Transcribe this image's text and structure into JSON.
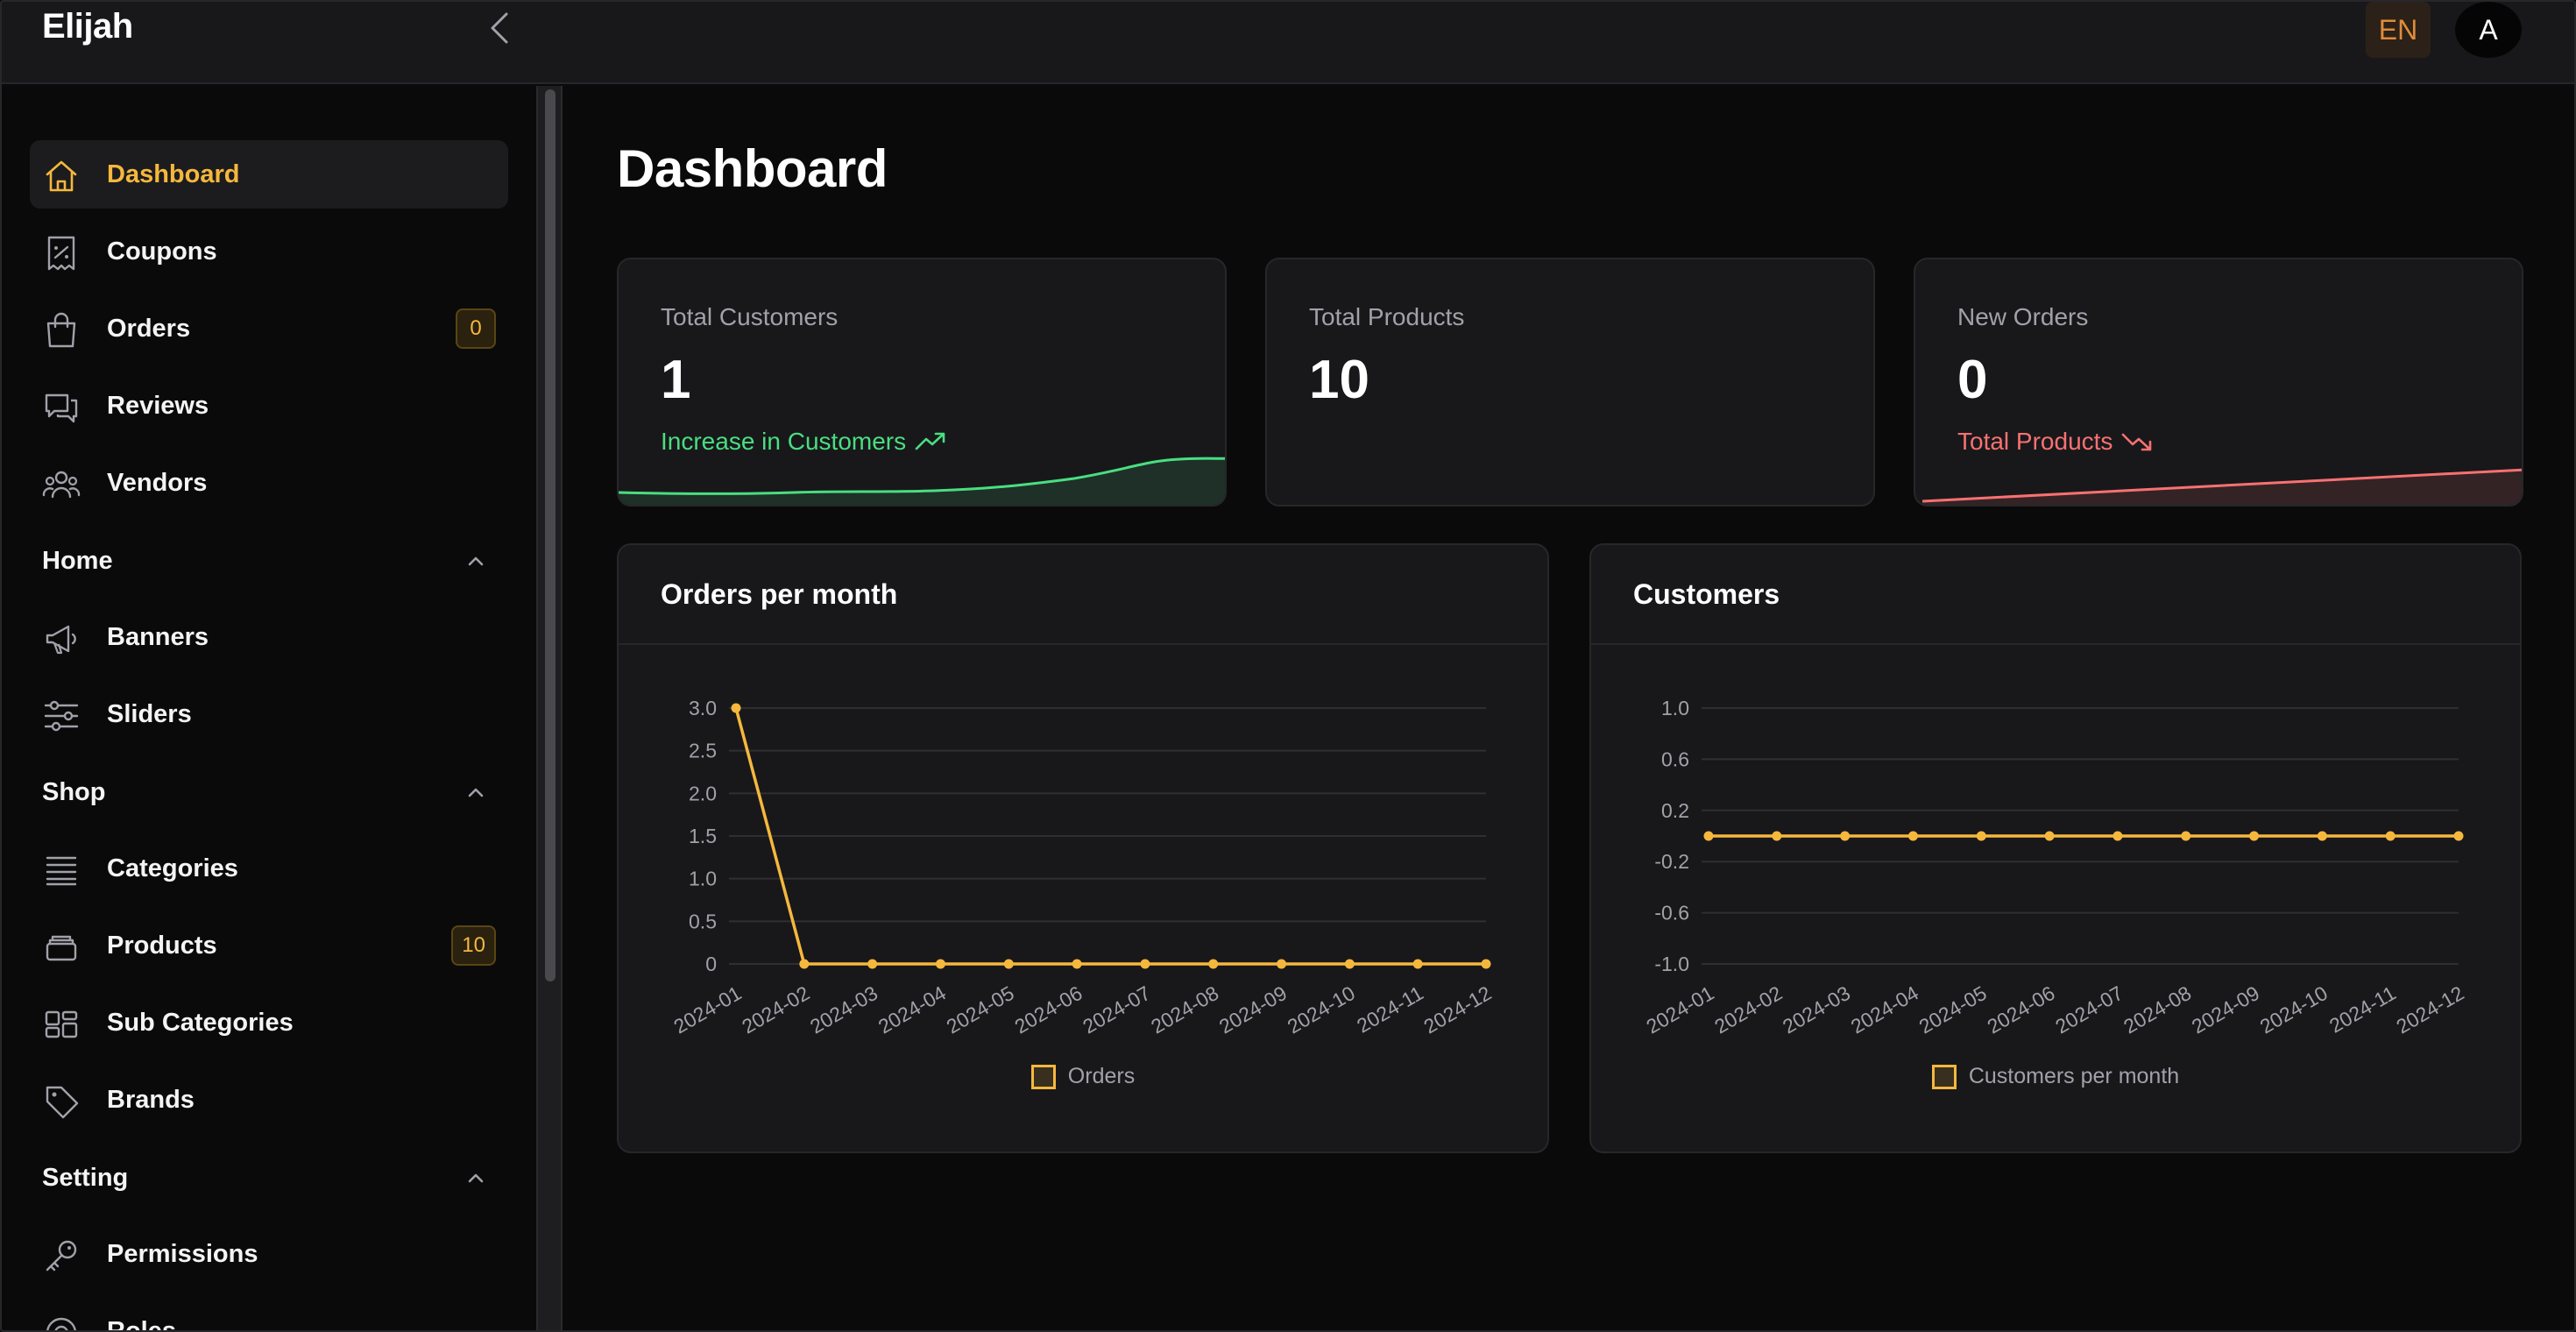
{
  "app": {
    "brand": "Elijah",
    "lang": "EN",
    "avatar_initial": "A"
  },
  "sidebar": {
    "items": [
      {
        "label": "Dashboard",
        "icon": "home-icon",
        "active": true
      },
      {
        "label": "Coupons",
        "icon": "coupon-icon"
      },
      {
        "label": "Orders",
        "icon": "shopping-bag-icon",
        "badge": "0"
      },
      {
        "label": "Reviews",
        "icon": "chat-bubbles-icon"
      },
      {
        "label": "Vendors",
        "icon": "users-icon"
      }
    ],
    "sections": [
      {
        "label": "Home",
        "items": [
          {
            "label": "Banners",
            "icon": "megaphone-icon"
          },
          {
            "label": "Sliders",
            "icon": "sliders-icon"
          }
        ]
      },
      {
        "label": "Shop",
        "items": [
          {
            "label": "Categories",
            "icon": "list-icon"
          },
          {
            "label": "Products",
            "icon": "box-stack-icon",
            "badge": "10"
          },
          {
            "label": "Sub Categories",
            "icon": "grid-icon"
          },
          {
            "label": "Brands",
            "icon": "tag-icon"
          }
        ]
      },
      {
        "label": "Setting",
        "items": [
          {
            "label": "Permissions",
            "icon": "key-icon"
          },
          {
            "label": "Roles",
            "icon": "roles-icon"
          }
        ]
      }
    ]
  },
  "main": {
    "title": "Dashboard",
    "stats": [
      {
        "label": "Total Customers",
        "value": "1",
        "trend": "Increase in Customers",
        "trend_color": "#4ade80",
        "trend_dir": "up"
      },
      {
        "label": "Total Products",
        "value": "10"
      },
      {
        "label": "New Orders",
        "value": "0",
        "trend": "Total Products",
        "trend_color": "#f87171",
        "trend_dir": "down"
      }
    ]
  },
  "charts": {
    "orders": {
      "title": "Orders per month"
    },
    "customers": {
      "title": "Customers"
    }
  },
  "chart_data": [
    {
      "type": "line",
      "title": "Orders per month",
      "x": [
        "2024-01",
        "2024-02",
        "2024-03",
        "2024-04",
        "2024-05",
        "2024-06",
        "2024-07",
        "2024-08",
        "2024-09",
        "2024-10",
        "2024-11",
        "2024-12"
      ],
      "series": [
        {
          "name": "Orders",
          "values": [
            3,
            0,
            0,
            0,
            0,
            0,
            0,
            0,
            0,
            0,
            0,
            0
          ],
          "color": "#f5b83d"
        }
      ],
      "ylim": [
        0,
        3
      ],
      "yticks": [
        "3.0",
        "2.5",
        "2.0",
        "1.5",
        "1.0",
        "0.5",
        "0"
      ],
      "ytick_values": [
        3,
        2.5,
        2,
        1.5,
        1,
        0.5,
        0
      ],
      "grid": true,
      "legend": "bottom"
    },
    {
      "type": "line",
      "title": "Customers",
      "x": [
        "2024-01",
        "2024-02",
        "2024-03",
        "2024-04",
        "2024-05",
        "2024-06",
        "2024-07",
        "2024-08",
        "2024-09",
        "2024-10",
        "2024-11",
        "2024-12"
      ],
      "series": [
        {
          "name": "Customers per month",
          "values": [
            0,
            0,
            0,
            0,
            0,
            0,
            0,
            0,
            0,
            0,
            0,
            0
          ],
          "color": "#f5b83d"
        }
      ],
      "ylim": [
        -1,
        1
      ],
      "yticks": [
        "1.0",
        "0.6",
        "0.2",
        "-0.2",
        "-0.6",
        "-1.0"
      ],
      "ytick_values": [
        1,
        0.6,
        0.2,
        -0.2,
        -0.6,
        -1
      ],
      "grid": true,
      "legend": "bottom"
    }
  ]
}
